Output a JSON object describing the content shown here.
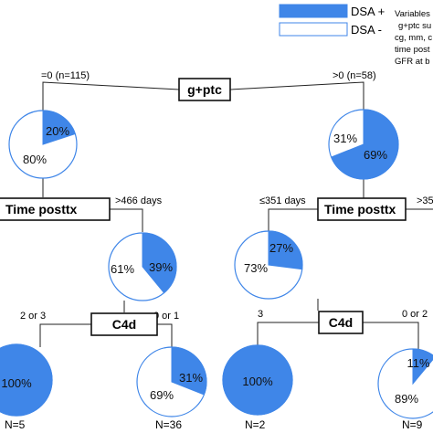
{
  "colors": {
    "dsa_pos": "#3f86e8",
    "dsa_neg": "#ffffff",
    "outline": "#3f86e8"
  },
  "legend": {
    "pos_label": "DSA +",
    "neg_label": "DSA -"
  },
  "note_lines": [
    "Variables",
    "g+ptc su",
    "cg, mm, c",
    "time post",
    "GFR at b"
  ],
  "nodes": {
    "root": "g+ptc",
    "time_left": "Time posttx",
    "time_right": "Time posttx",
    "c4d_left": "C4d",
    "c4d_right": "C4d"
  },
  "edges": {
    "root_left": "=0 (n=115)",
    "root_right": ">0 (n=58)",
    "time_left_right": ">466 days",
    "time_right_left": "≤351 days",
    "time_right_right": ">35",
    "c4d_left_left": "2 or 3",
    "c4d_left_right": "0 or 1",
    "c4d_right_left": "3",
    "c4d_right_right": "0 or 2"
  },
  "pies": [
    {
      "id": "p1",
      "pos": 20,
      "pos_label": "20%",
      "neg_label": "80%"
    },
    {
      "id": "p2",
      "pos": 69,
      "pos_label": "69%",
      "neg_label": "31%"
    },
    {
      "id": "p3",
      "pos": 39,
      "pos_label": "39%",
      "neg_label": "61%"
    },
    {
      "id": "p4",
      "pos": 27,
      "pos_label": "27%",
      "neg_label": "73%"
    },
    {
      "id": "p5",
      "pos": 100,
      "pos_label": "100%",
      "neg_label": "",
      "n_label": "N=5"
    },
    {
      "id": "p6",
      "pos": 31,
      "pos_label": "31%",
      "neg_label": "69%",
      "n_label": "N=36"
    },
    {
      "id": "p7",
      "pos": 100,
      "pos_label": "100%",
      "neg_label": "",
      "n_label": "N=2"
    },
    {
      "id": "p8",
      "pos": 11,
      "pos_label": "11%",
      "neg_label": "89%",
      "n_label": "N=9"
    }
  ]
}
